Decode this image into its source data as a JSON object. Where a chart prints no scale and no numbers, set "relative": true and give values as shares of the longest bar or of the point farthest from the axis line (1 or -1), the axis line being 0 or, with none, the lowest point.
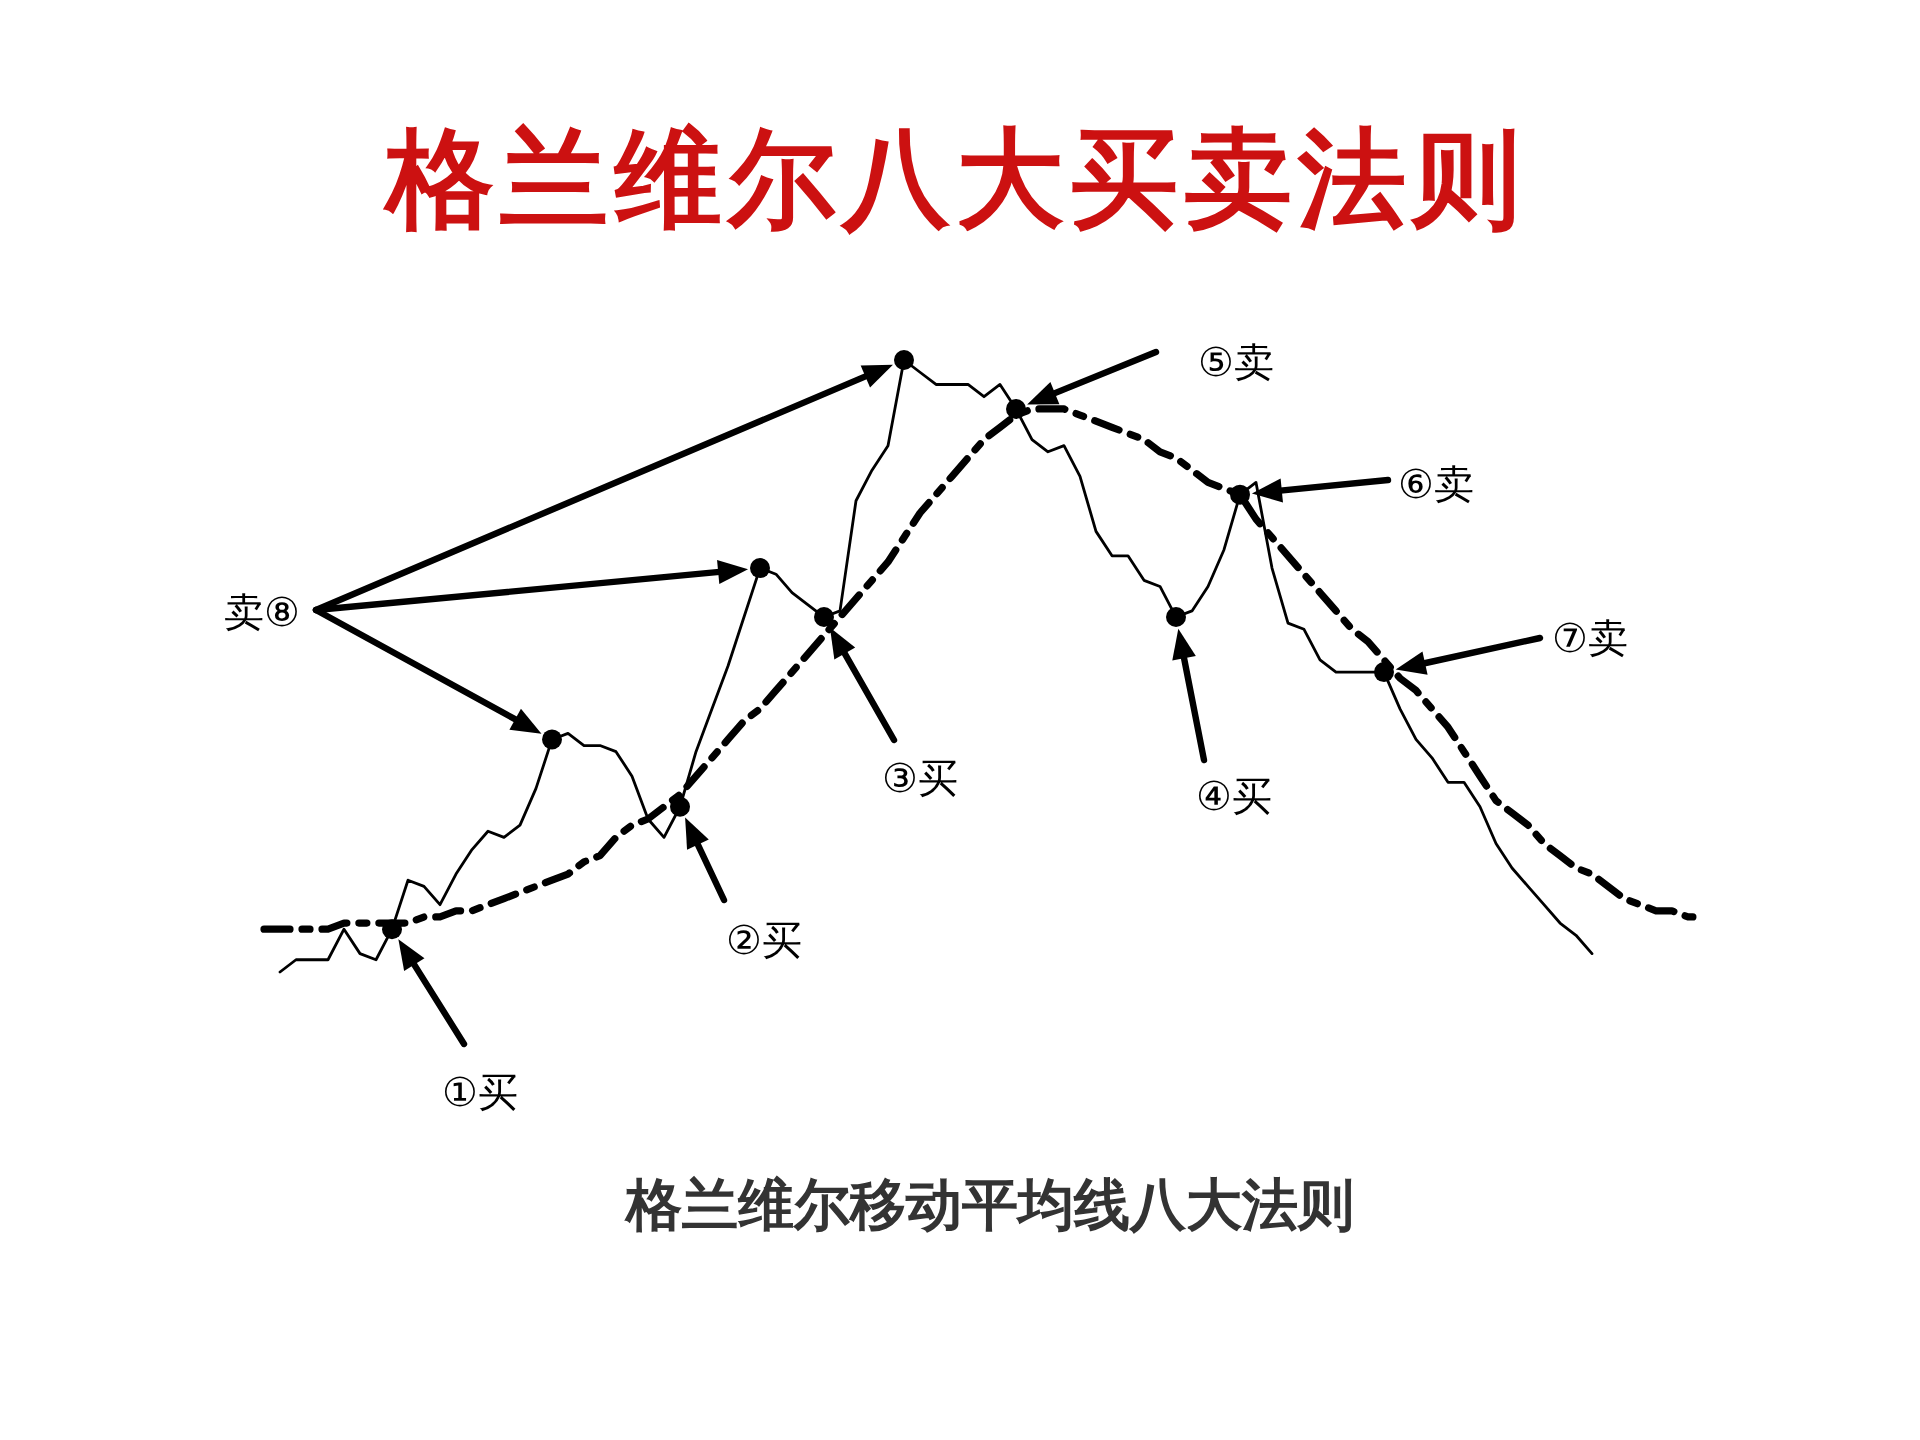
{
  "chart_data": {
    "type": "line",
    "relative": true,
    "title": "格兰维尔八大买卖法则",
    "annotations": [
      "①买",
      "②买",
      "③买",
      "④买",
      "⑤卖",
      "⑥卖",
      "⑦卖",
      "卖⑧",
      "格兰维尔移动平均线八大法则"
    ],
    "categories": [
      null,
      null,
      null,
      null,
      null,
      null,
      null,
      null,
      null,
      null,
      null,
      null,
      null,
      null,
      null,
      null,
      null,
      null,
      null,
      null,
      null,
      null,
      null,
      null,
      null,
      null,
      null,
      null,
      null,
      null,
      null,
      null,
      null,
      null,
      null,
      null,
      null,
      null,
      null,
      null,
      null,
      null,
      null,
      null,
      null,
      null,
      null,
      null,
      null,
      null,
      null,
      null,
      null,
      null,
      null,
      null,
      null,
      null,
      null,
      null,
      null,
      null,
      null,
      null,
      null,
      null,
      null,
      null,
      null,
      null,
      null,
      null,
      null,
      null,
      null,
      null,
      null,
      null,
      null,
      null,
      null,
      null,
      null,
      null,
      null,
      null,
      null,
      null,
      null,
      null,
      null
    ],
    "series": [
      {
        "color": "#000000",
        "line_style": "solid",
        "values": [
          null,
          0,
          0.02,
          0.02,
          0.02,
          0.07,
          0.03,
          0.02,
          0.07,
          0.15,
          0.14,
          0.11,
          0.16,
          0.2,
          0.23,
          0.22,
          0.24,
          0.3,
          0.38,
          0.39,
          0.37,
          0.37,
          0.36,
          0.32,
          0.25,
          0.22,
          0.27,
          0.36,
          0.43,
          0.5,
          0.58,
          0.66,
          0.65,
          0.62,
          0.6,
          0.58,
          0.59,
          0.77,
          0.82,
          0.86,
          1,
          0.98,
          0.96,
          0.96,
          0.96,
          0.94,
          0.96,
          0.92,
          0.87,
          0.85,
          0.86,
          0.81,
          0.72,
          0.68,
          0.68,
          0.64,
          0.63,
          0.58,
          0.59,
          0.63,
          0.69,
          0.78,
          0.8,
          0.66,
          0.57,
          0.56,
          0.51,
          0.49,
          0.49,
          0.49,
          0.49,
          0.43,
          0.38,
          0.35,
          0.31,
          0.31,
          0.27,
          0.21,
          0.17,
          0.14,
          0.11,
          0.08,
          0.06,
          0.03,
          null,
          null,
          null,
          null,
          null,
          null,
          null
        ]
      },
      {
        "color": "#000000",
        "line_style": "dashed",
        "values": [
          0.07,
          0.07,
          0.07,
          0.07,
          0.07,
          0.08,
          0.08,
          0.08,
          0.08,
          0.08,
          0.09,
          0.09,
          0.1,
          0.1,
          0.11,
          0.12,
          0.13,
          0.14,
          0.15,
          0.16,
          0.18,
          0.19,
          0.22,
          0.24,
          0.25,
          0.27,
          0.29,
          0.32,
          0.35,
          0.38,
          0.41,
          0.43,
          0.46,
          0.49,
          0.52,
          0.55,
          0.58,
          0.61,
          0.64,
          0.67,
          0.71,
          0.75,
          0.78,
          0.81,
          0.84,
          0.87,
          0.89,
          0.91,
          0.92,
          0.92,
          0.92,
          0.91,
          0.9,
          0.89,
          0.88,
          0.87,
          0.85,
          0.84,
          0.82,
          0.8,
          0.79,
          0.78,
          0.74,
          0.71,
          0.68,
          0.65,
          0.62,
          0.59,
          0.56,
          0.54,
          0.51,
          0.48,
          0.46,
          0.43,
          0.4,
          0.36,
          0.32,
          0.28,
          0.26,
          0.24,
          0.21,
          0.19,
          0.17,
          0.16,
          0.14,
          0.12,
          0.11,
          0.1,
          0.1,
          0.09,
          0.09
        ]
      }
    ]
  }
}
